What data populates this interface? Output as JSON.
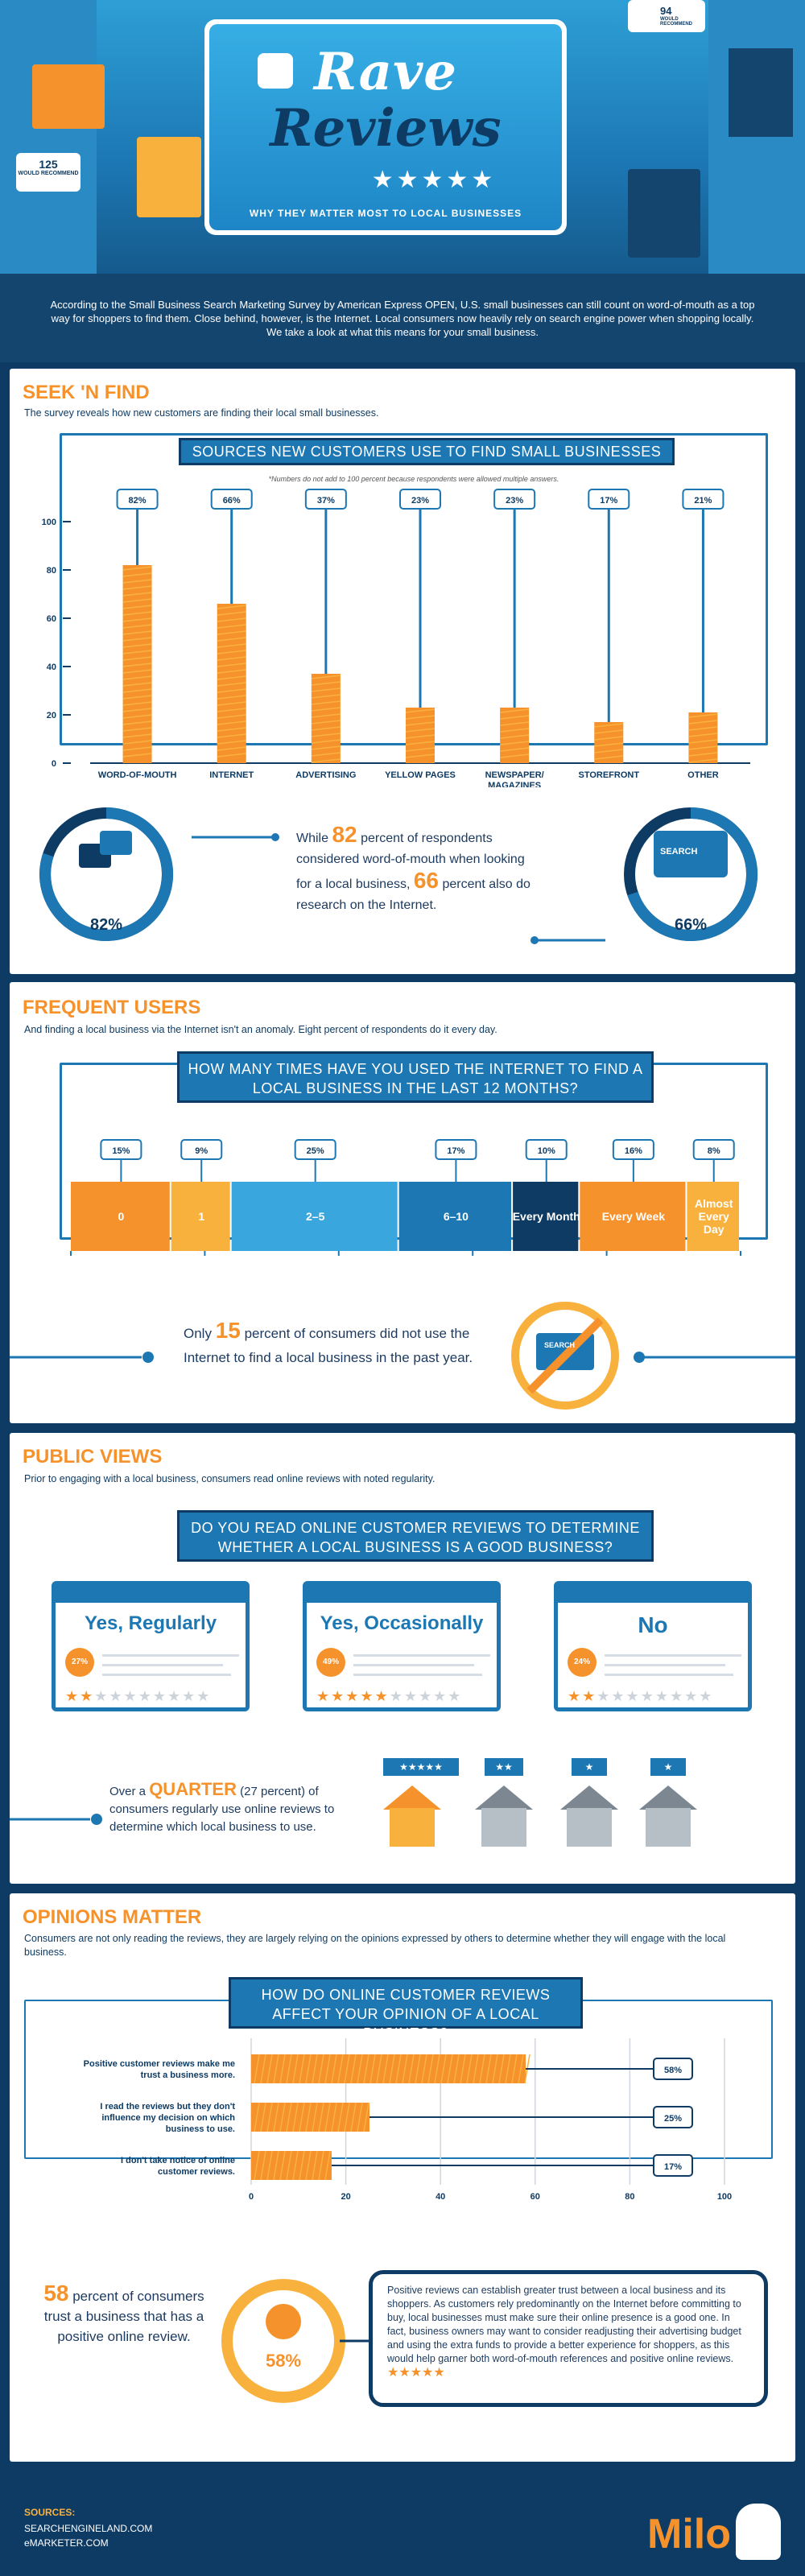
{
  "hero": {
    "title_top": "Rave",
    "title_bottom": "Reviews",
    "stars": "★★★★★",
    "subtitle": "WHY THEY MATTER MOST TO LOCAL BUSINESSES",
    "bubble_count": "125",
    "bubble_text": "WOULD RECOMMEND",
    "bubble2_count": "94",
    "bubble2_text": "WOULD RECOMMEND"
  },
  "intro": "According to the Small Business Search Marketing Survey by American Express OPEN, U.S. small businesses can still count on word-of-mouth as a top way for shoppers to find them. Close behind, however, is the Internet. Local consumers now heavily rely on search engine power when shopping locally. We take a look at what this means for your small business.",
  "seek": {
    "title": "SEEK 'N FIND",
    "desc": "The survey reveals how new customers are finding their local small businesses.",
    "stat_a": "82",
    "stat_b": "66",
    "text_1": "While",
    "text_2": "percent of respondents considered word-of-mouth when looking for a local business,",
    "text_3": "percent also do research on the Internet.",
    "ring_a": "82%",
    "ring_b": "66%",
    "search_label": "SEARCH"
  },
  "frequent": {
    "title": "FREQUENT USERS",
    "desc": "And finding a local business via the Internet isn't an anomaly. Eight percent of respondents do it every day.",
    "stat": "15",
    "text_1": "Only",
    "text_2": "percent of consumers did not use the Internet to find a local business in the past year.",
    "search_label": "SEARCH"
  },
  "public": {
    "title": "PUBLIC VIEWS",
    "desc": "Prior to engaging with a local business, consumers read online reviews with noted regularity.",
    "banner": "DO YOU READ ONLINE CUSTOMER REVIEWS TO DETERMINE WHETHER A LOCAL BUSINESS IS A GOOD BUSINESS?",
    "cards": [
      {
        "title": "Yes, Regularly",
        "pct": "27%",
        "stars_on": "★★",
        "stars_off": "★★★★★★★★"
      },
      {
        "title": "Yes, Occasionally",
        "pct": "49%",
        "stars_on": "★★★★★",
        "stars_off": "★★★★★"
      },
      {
        "title": "No",
        "pct": "24%",
        "stars_on": "★★",
        "stars_off": "★★★★★★★★"
      }
    ],
    "text_1": "Over a",
    "quarter": "QUARTER",
    "text_2": "(27 percent) of consumers regularly use online reviews to determine which local business to use.",
    "house_stars": [
      "★★★★★",
      "★★",
      "★",
      "★"
    ]
  },
  "opinions": {
    "title": "OPINIONS MATTER",
    "desc": "Consumers are not only reading the reviews, they are largely relying on the opinions expressed by others to determine whether they will engage with the local business.",
    "stat": "58",
    "text": "percent of consumers trust a business that has a positive online review.",
    "ring": "58%",
    "callout": "Positive reviews can establish greater trust between a local business and its shoppers. As customers rely predominantly on the Internet before committing to buy, local businesses must make sure their online presence is a good one. In fact, business owners may want to consider readjusting their advertising budget and using the extra funds to provide a better experience for shoppers, as this would help garner both word-of-mouth references and positive online reviews.",
    "callout_stars": "★★★★★"
  },
  "footer": {
    "sources_label": "SOURCES:",
    "source_1": "SEARCHENGINELAND.COM",
    "source_2": "eMARKETER.COM",
    "brand": "Milo"
  },
  "colors": {
    "orange": "#f6922b",
    "blue": "#1c77b3",
    "navy": "#0e3b63",
    "light_orange": "#f9b13d",
    "light_blue": "#3aa6de"
  },
  "chart_data": [
    {
      "type": "bar",
      "title": "SOURCES NEW CUSTOMERS USE TO FIND SMALL BUSINESSES",
      "note": "*Numbers do not add to 100 percent because respondents were allowed multiple answers.",
      "categories": [
        "WORD-OF-MOUTH",
        "INTERNET",
        "ADVERTISING",
        "YELLOW PAGES",
        "NEWSPAPER/ MAGAZINES",
        "STOREFRONT",
        "OTHER"
      ],
      "values": [
        82,
        66,
        37,
        23,
        23,
        17,
        21
      ],
      "labels": [
        "82%",
        "66%",
        "37%",
        "23%",
        "23%",
        "17%",
        "21%"
      ],
      "yticks": [
        0,
        20,
        40,
        60,
        80,
        100
      ],
      "ylim": [
        0,
        100
      ]
    },
    {
      "type": "bar",
      "title": "HOW MANY TIMES HAVE YOU USED THE INTERNET TO FIND A LOCAL BUSINESS IN THE LAST 12 MONTHS?",
      "orientation": "stacked-horizontal",
      "categories": [
        "0",
        "1",
        "2–5",
        "6–10",
        "Every Month",
        "Every Week",
        "Almost Every Day"
      ],
      "values": [
        15,
        9,
        25,
        17,
        10,
        16,
        8
      ],
      "labels": [
        "15%",
        "9%",
        "25%",
        "17%",
        "10%",
        "16%",
        "8%"
      ],
      "colors": [
        "#f6922b",
        "#f9b13d",
        "#3aa6de",
        "#1c77b3",
        "#0e3b63",
        "#f6922b",
        "#f9b13d"
      ],
      "xticks": [
        0,
        20,
        40,
        60,
        80,
        100
      ],
      "xlim": [
        0,
        100
      ]
    },
    {
      "type": "bar",
      "title": "HOW DO ONLINE CUSTOMER REVIEWS AFFECT YOUR OPINION OF A LOCAL BUSINESS?",
      "orientation": "horizontal",
      "categories": [
        "Positive customer reviews make me trust a business more.",
        "I read the reviews but they don't influence my decision on which business to use.",
        "I don't take notice of online customer reviews."
      ],
      "values": [
        58,
        25,
        17
      ],
      "labels": [
        "58%",
        "25%",
        "17%"
      ],
      "xticks": [
        0,
        20,
        40,
        60,
        80,
        100
      ],
      "xlim": [
        0,
        100
      ]
    }
  ]
}
